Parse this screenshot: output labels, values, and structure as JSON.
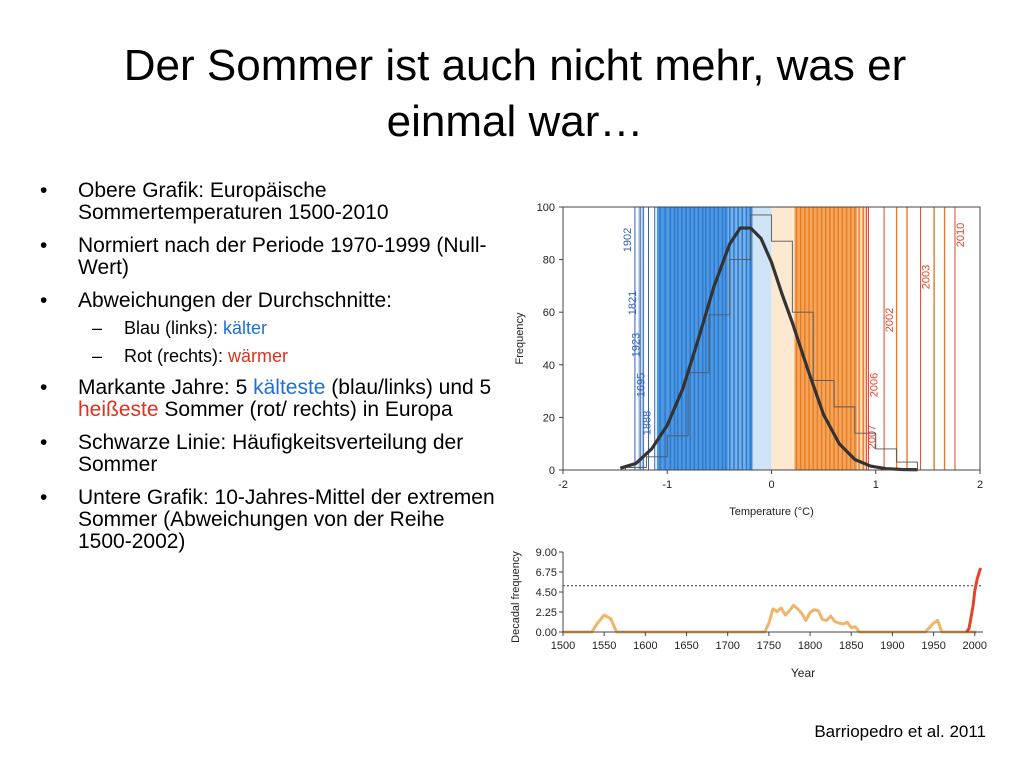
{
  "slide": {
    "title": "Der Sommer ist auch nicht mehr, was er einmal war…",
    "bullets": [
      {
        "text": "Obere Grafik: Europäische Sommertemperaturen 1500-2010"
      },
      {
        "text": "Normiert nach der Periode 1970-1999 (Null-Wert)"
      },
      {
        "text": "Abweichungen der Durchschnitte:",
        "sub": [
          {
            "prefix": "Blau (links): ",
            "highlight": "kälter",
            "color": "#1f6fd6"
          },
          {
            "prefix": "Rot (rechts): ",
            "highlight": "wärmer",
            "color": "#e0301e"
          }
        ]
      },
      {
        "parts": [
          "Markante Jahre: 5 ",
          "kälteste",
          " (blau/links) und 5 ",
          "heißeste",
          " Sommer (rot/ rechts) in Europa"
        ]
      },
      {
        "text": "Schwarze Linie: Häufigkeitsverteilung der Sommer"
      },
      {
        "text": "Untere Grafik: 10-Jahres-Mittel der extremen Sommer (Abweichungen von der Reihe 1500-2002)"
      }
    ],
    "credit": "Barriopedro et al. 2011"
  },
  "colors": {
    "cold": "#1f6fd6",
    "warm": "#e0301e",
    "curve": "#333333"
  },
  "chart_data": [
    {
      "type": "bar",
      "xlabel": "Temperature (°C)",
      "ylabel": "Frequency",
      "xlim": [
        -2,
        2
      ],
      "ylim": [
        0,
        100
      ],
      "xticks": [
        -2,
        -1,
        0,
        1,
        2
      ],
      "yticks": [
        0,
        20,
        40,
        60,
        80,
        100
      ],
      "histogram": {
        "bins": [
          [
            -1.4,
            -1.2
          ],
          [
            -1.2,
            -1.0
          ],
          [
            -1.0,
            -0.8
          ],
          [
            -0.8,
            -0.6
          ],
          [
            -0.6,
            -0.4
          ],
          [
            -0.4,
            -0.2
          ],
          [
            -0.2,
            0.0
          ],
          [
            0.0,
            0.2
          ],
          [
            0.2,
            0.4
          ],
          [
            0.4,
            0.6
          ],
          [
            0.6,
            0.8
          ],
          [
            0.8,
            1.0
          ],
          [
            1.0,
            1.2
          ],
          [
            1.2,
            1.4
          ]
        ],
        "values": [
          1,
          5,
          13,
          37,
          59,
          80,
          97,
          87,
          60,
          34,
          24,
          14,
          8,
          3
        ]
      },
      "curve": {
        "x": [
          -1.45,
          -1.3,
          -1.15,
          -1.0,
          -0.85,
          -0.7,
          -0.55,
          -0.4,
          -0.3,
          -0.2,
          -0.1,
          0.0,
          0.1,
          0.2,
          0.35,
          0.5,
          0.65,
          0.8,
          0.95,
          1.1,
          1.25,
          1.4
        ],
        "y": [
          0.7,
          2.5,
          8,
          17,
          31,
          50,
          70,
          86,
          92,
          92,
          88,
          79,
          67,
          56,
          38,
          21,
          10,
          4,
          1.5,
          0.5,
          0.2,
          0.1
        ]
      },
      "year_lines": {
        "cold": [
          {
            "label": "1902",
            "x": -1.31
          },
          {
            "label": "1821",
            "x": -1.26
          },
          {
            "label": "1923",
            "x": -1.23
          },
          {
            "label": "1695",
            "x": -1.18
          },
          {
            "label": "1888",
            "x": -1.12
          }
        ],
        "warm": [
          {
            "label": "2007",
            "x": 0.91
          },
          {
            "label": "2006",
            "x": 0.93
          },
          {
            "label": "2002",
            "x": 1.08
          },
          {
            "label": "2003",
            "x": 1.43
          },
          {
            "label": "2010",
            "x": 1.76
          }
        ]
      },
      "bands": [
        {
          "range": [
            -1.28,
            -1.22
          ],
          "color": "#c9dbef"
        },
        {
          "range": [
            -1.1,
            -0.18
          ],
          "color": "#4e98e1"
        },
        {
          "range": [
            -0.42,
            -0.22
          ],
          "color": "#73b1e8"
        },
        {
          "range": [
            -0.18,
            0.0
          ],
          "color": "#cfe5f7"
        },
        {
          "range": [
            0.0,
            0.22
          ],
          "color": "#fce9d0"
        },
        {
          "range": [
            0.22,
            0.82
          ],
          "color": "#f3a55a"
        },
        {
          "range": [
            0.82,
            0.92
          ],
          "color": "#fad8b2"
        }
      ],
      "stripe_lines": {
        "cold": [
          -1.07,
          -1.02,
          -0.97,
          -0.93,
          -0.9,
          -0.86,
          -0.82,
          -0.78,
          -0.74,
          -0.7,
          -0.66,
          -0.63,
          -0.59,
          -0.55,
          -0.51,
          -0.47,
          -0.44,
          -0.4,
          -0.36,
          -0.32,
          -0.28,
          -0.24,
          -0.2
        ],
        "warm": [
          0.24,
          0.28,
          0.32,
          0.36,
          0.4,
          0.44,
          0.48,
          0.52,
          0.56,
          0.6,
          0.64,
          0.68,
          0.72,
          0.76,
          0.8,
          0.84,
          0.88,
          1.2,
          1.3,
          1.56,
          1.66
        ]
      }
    },
    {
      "type": "line",
      "xlabel": "Year",
      "ylabel": "Decadal frequency",
      "xlim": [
        1500,
        2010
      ],
      "ylim": [
        0,
        9
      ],
      "xticks": [
        1500,
        1550,
        1600,
        1650,
        1700,
        1750,
        1800,
        1850,
        1900,
        1950,
        2000
      ],
      "yticks": [
        0,
        2.25,
        4.5,
        6.75,
        9
      ],
      "ytick_labels": [
        "0.00",
        "2.25",
        "4.50",
        "6.75",
        "9.00"
      ],
      "threshold": 5.2,
      "series": [
        {
          "x": [
            1500,
            1515,
            1525,
            1535,
            1542,
            1550,
            1558,
            1565,
            1575,
            1590,
            1600,
            1610,
            1620,
            1630,
            1640,
            1650,
            1660,
            1670,
            1680,
            1690,
            1700,
            1710,
            1720,
            1730,
            1740,
            1745,
            1750,
            1755,
            1760,
            1765,
            1770,
            1775,
            1780,
            1785,
            1790,
            1795,
            1800,
            1805,
            1810,
            1815,
            1820,
            1825,
            1830,
            1835,
            1840,
            1845,
            1850,
            1855,
            1860,
            1870,
            1880,
            1890,
            1900,
            1910,
            1920,
            1930,
            1935,
            1940,
            1945,
            1950,
            1955,
            1960,
            1970,
            1980,
            1985,
            1990,
            1995,
            2000,
            2002
          ],
          "y": [
            0,
            0,
            0,
            0,
            1.0,
            1.9,
            1.5,
            0,
            0,
            0,
            0,
            0,
            0,
            0,
            0,
            0,
            0,
            0,
            0,
            0,
            0,
            0,
            0,
            0,
            0,
            0,
            1.0,
            2.6,
            2.3,
            2.7,
            1.9,
            2.4,
            3.0,
            2.6,
            2.1,
            1.3,
            2.2,
            2.5,
            2.4,
            1.4,
            1.3,
            1.8,
            1.2,
            1.0,
            0.9,
            1.1,
            0.5,
            0.6,
            0,
            0,
            0,
            0,
            0,
            0,
            0,
            0,
            0,
            0,
            0.5,
            1.0,
            1.3,
            0,
            0,
            0,
            0,
            0,
            0,
            0,
            0
          ]
        },
        {
          "x": [
            1990,
            1993,
            1995,
            1998,
            2000,
            2003,
            2007
          ],
          "y": [
            0,
            0.4,
            1.4,
            3.0,
            4.6,
            6.0,
            7.2
          ]
        }
      ]
    }
  ]
}
